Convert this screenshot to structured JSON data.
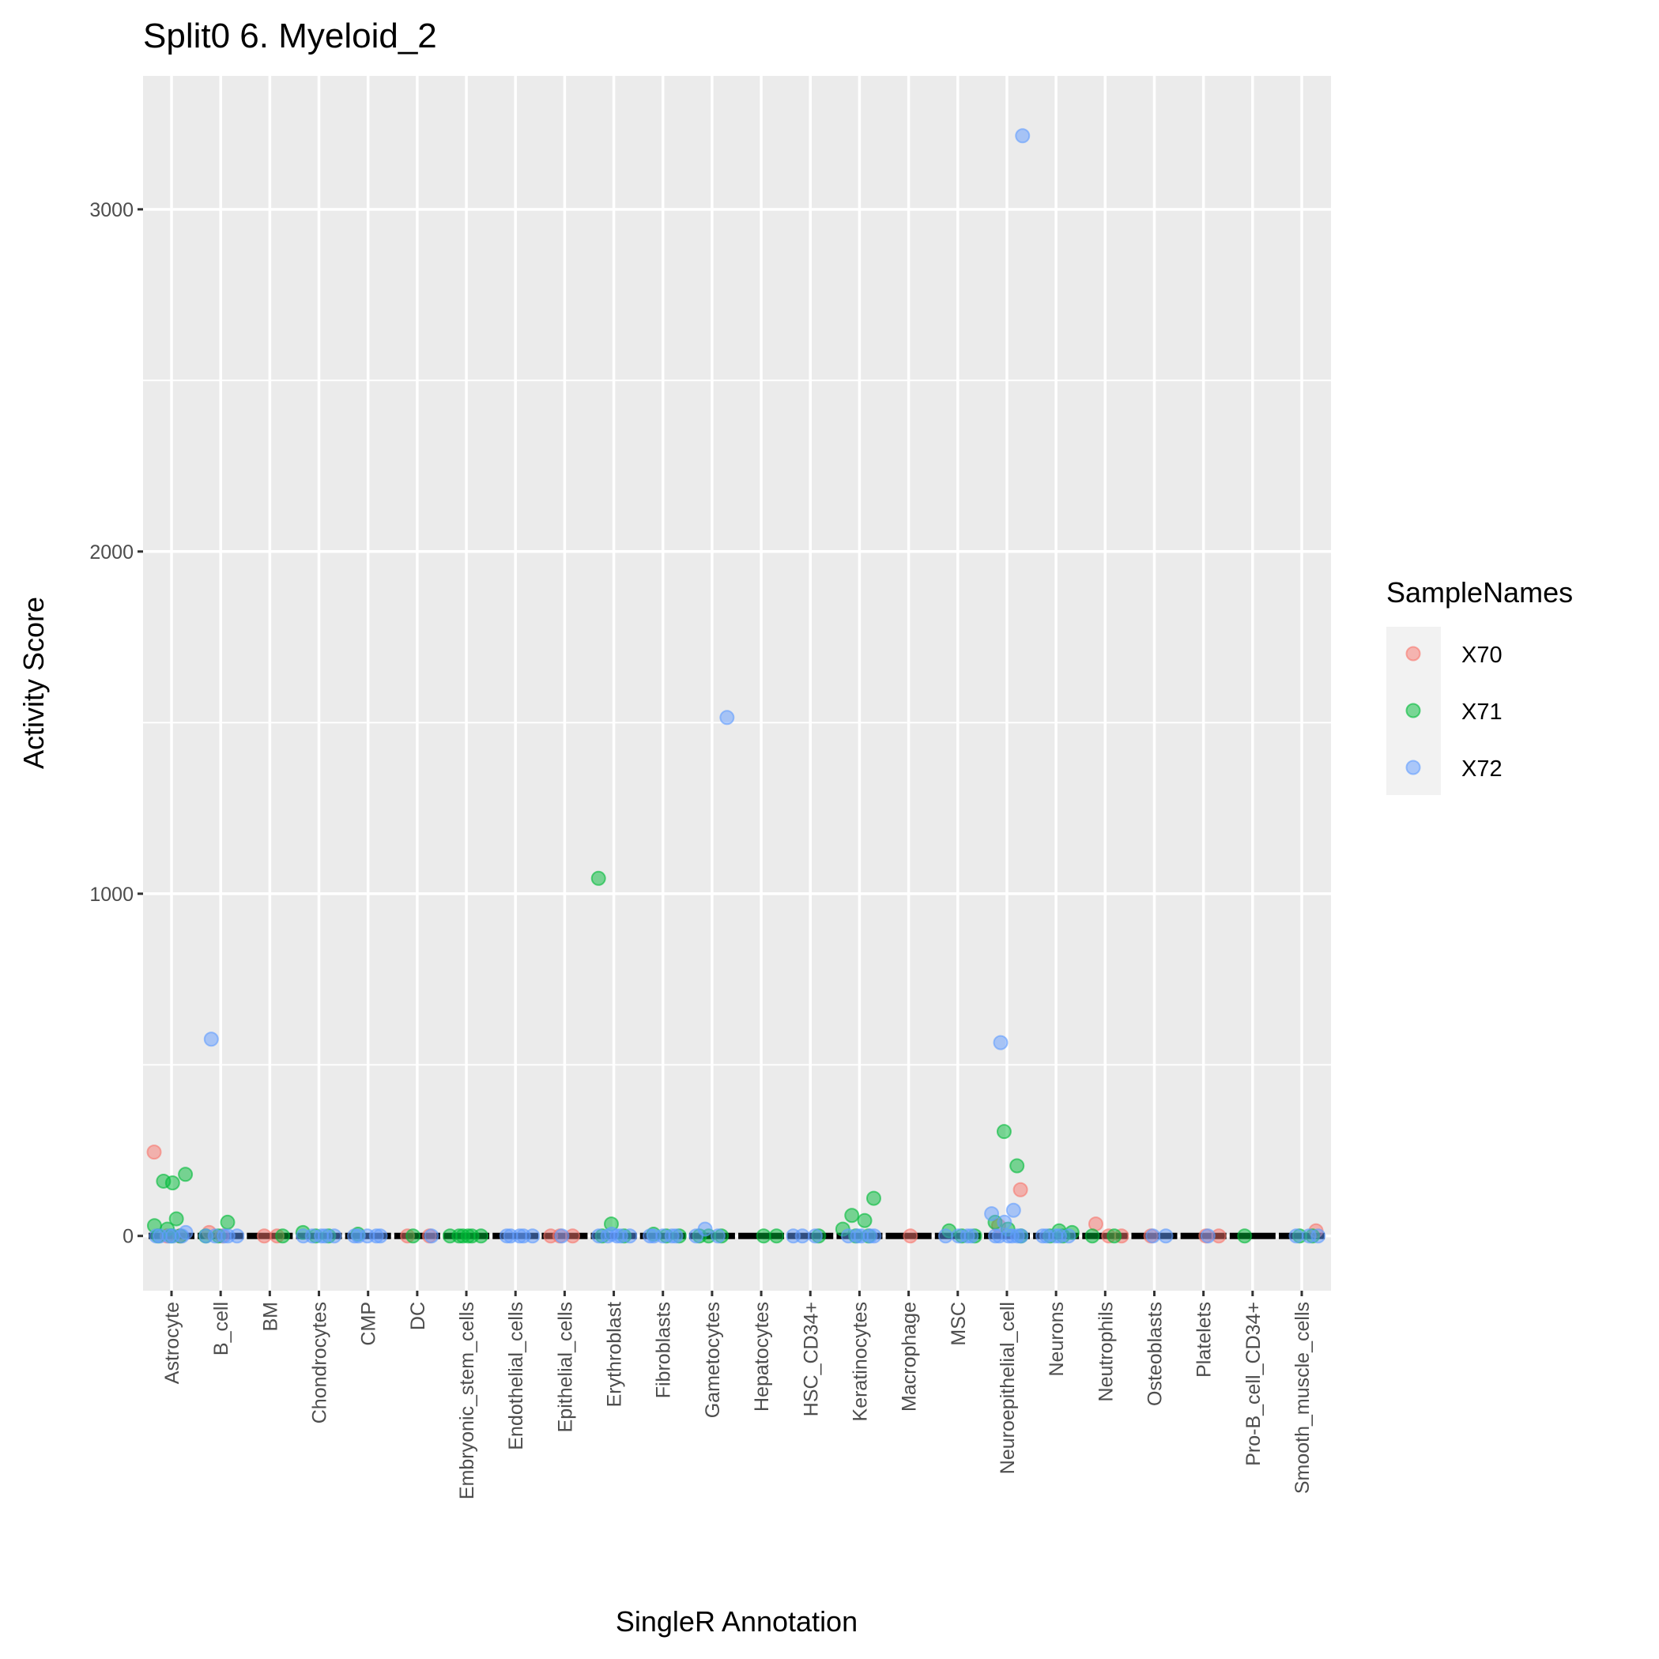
{
  "chart_data": {
    "type": "scatter",
    "subtype": "jittered boxplot",
    "title": "Split0 6. Myeloid_2",
    "xlabel": "SingleR Annotation",
    "ylabel": "Activity Score",
    "ylim": [
      -160,
      3390
    ],
    "yticks": [
      0,
      1000,
      2000,
      3000
    ],
    "grid": true,
    "legend": {
      "title": "SampleNames",
      "placement": "right",
      "entries": [
        "X70",
        "X71",
        "X72"
      ]
    },
    "colors": {
      "X70": "#F8766D",
      "X71": "#00BA38",
      "X72": "#619CFF",
      "panel": "#EBEBEB",
      "box": "#000000"
    },
    "categories": [
      "Astrocyte",
      "B_cell",
      "BM",
      "Chondrocytes",
      "CMP",
      "DC",
      "Embryonic_stem_cells",
      "Endothelial_cells",
      "Epithelial_cells",
      "Erythroblast",
      "Fibroblasts",
      "Gametocytes",
      "Hepatocytes",
      "HSC_CD34+",
      "Keratinocytes",
      "Macrophage",
      "MSC",
      "Neuroepithelial_cell",
      "Neurons",
      "Neutrophils",
      "Osteoblasts",
      "Platelets",
      "Pro-B_cell_CD34+",
      "Smooth_muscle_cells"
    ],
    "points": [
      {
        "X70": [
          245,
          0,
          0
        ],
        "X71": [
          155,
          180,
          160,
          50,
          30,
          20,
          0,
          0,
          0
        ],
        "X72": [
          0,
          0,
          0,
          0,
          0,
          10
        ]
      },
      {
        "X70": [
          10,
          0
        ],
        "X71": [
          40,
          0,
          0
        ],
        "X72": [
          575,
          0,
          0,
          0,
          0,
          0
        ]
      },
      {
        "X70": [
          0,
          0
        ],
        "X71": [
          0
        ],
        "X72": []
      },
      {
        "X70": [],
        "X71": [
          10,
          0,
          0
        ],
        "X72": [
          0,
          0,
          0,
          0,
          0
        ]
      },
      {
        "X70": [],
        "X71": [
          5
        ],
        "X72": [
          0,
          0,
          0,
          0,
          0
        ]
      },
      {
        "X70": [
          0,
          0
        ],
        "X71": [
          0
        ],
        "X72": [
          0
        ]
      },
      {
        "X70": [],
        "X71": [
          0,
          0,
          0,
          0,
          0,
          0
        ],
        "X72": []
      },
      {
        "X70": [],
        "X71": [],
        "X72": [
          0,
          0,
          0,
          0,
          0
        ]
      },
      {
        "X70": [
          0,
          0,
          0
        ],
        "X71": [],
        "X72": [
          0
        ]
      },
      {
        "X70": [],
        "X71": [
          1045,
          35,
          0,
          0
        ],
        "X72": [
          0,
          0,
          0,
          0,
          0,
          5
        ]
      },
      {
        "X70": [],
        "X71": [
          5,
          0,
          0
        ],
        "X72": [
          0,
          0,
          0,
          0,
          0
        ]
      },
      {
        "X70": [],
        "X71": [
          0,
          0,
          0
        ],
        "X72": [
          1515,
          20,
          0,
          0
        ]
      },
      {
        "X70": [],
        "X71": [
          0,
          0
        ],
        "X72": []
      },
      {
        "X70": [],
        "X71": [
          0
        ],
        "X72": [
          0,
          0,
          0
        ]
      },
      {
        "X70": [],
        "X71": [
          110,
          60,
          45,
          20,
          0,
          0
        ],
        "X72": [
          0,
          0,
          0,
          0,
          0
        ]
      },
      {
        "X70": [
          0
        ],
        "X71": [],
        "X72": []
      },
      {
        "X70": [],
        "X71": [
          15,
          0,
          0
        ],
        "X72": [
          0,
          0,
          0,
          0
        ]
      },
      {
        "X70": [
          135,
          30
        ],
        "X71": [
          305,
          205,
          40,
          20,
          0
        ],
        "X72": [
          3215,
          565,
          75,
          65,
          40,
          0,
          0,
          0,
          0,
          0,
          0
        ]
      },
      {
        "X70": [],
        "X71": [
          15,
          10,
          0,
          0
        ],
        "X72": [
          0,
          0,
          0,
          0,
          0
        ]
      },
      {
        "X70": [
          35,
          0,
          0
        ],
        "X71": [
          0,
          0
        ],
        "X72": []
      },
      {
        "X70": [
          0
        ],
        "X71": [],
        "X72": [
          0,
          0
        ]
      },
      {
        "X70": [
          0,
          0
        ],
        "X71": [],
        "X72": [
          0
        ]
      },
      {
        "X70": [],
        "X71": [
          0
        ],
        "X72": []
      },
      {
        "X70": [
          15
        ],
        "X71": [
          0,
          0
        ],
        "X72": [
          0,
          0,
          0
        ]
      }
    ]
  }
}
